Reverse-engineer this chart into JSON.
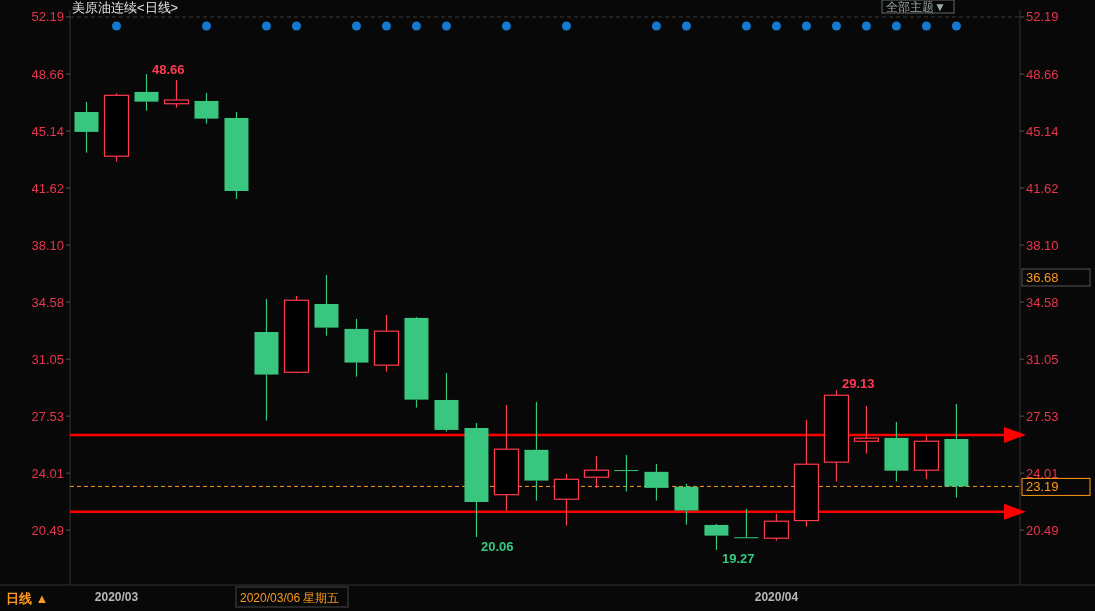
{
  "chart_data": {
    "type": "candlestick",
    "title": "美原油连续<日线>",
    "categories": [
      null,
      "2020/03",
      null,
      null,
      null,
      null,
      null,
      null,
      null,
      null,
      null,
      null,
      null,
      null,
      null,
      null,
      null,
      null,
      null,
      null,
      null,
      null,
      null,
      "2020/04",
      null,
      null,
      null,
      null,
      null,
      null
    ],
    "ohlc": [
      [
        46.32,
        46.94,
        43.81,
        45.09
      ],
      [
        43.59,
        47.48,
        43.25,
        47.35
      ],
      [
        47.56,
        48.66,
        46.4,
        46.96
      ],
      [
        46.83,
        48.3,
        46.59,
        47.06
      ],
      [
        47.0,
        47.5,
        45.6,
        45.91
      ],
      [
        45.95,
        46.32,
        40.95,
        41.44
      ],
      [
        32.73,
        34.77,
        27.26,
        30.1
      ],
      [
        30.24,
        34.96,
        30.18,
        34.69
      ],
      [
        34.46,
        36.25,
        32.5,
        33.0
      ],
      [
        32.92,
        33.54,
        29.97,
        30.84
      ],
      [
        30.68,
        33.78,
        30.28,
        32.78
      ],
      [
        33.6,
        33.66,
        28.06,
        28.55
      ],
      [
        28.53,
        30.2,
        26.58,
        26.68
      ],
      [
        26.8,
        27.11,
        20.06,
        22.23
      ],
      [
        22.68,
        28.22,
        21.7,
        25.49
      ],
      [
        25.45,
        28.41,
        22.31,
        23.55
      ],
      [
        22.4,
        23.96,
        20.77,
        23.63
      ],
      [
        23.76,
        25.07,
        23.08,
        24.19
      ],
      [
        24.2,
        25.13,
        22.87,
        24.18
      ],
      [
        24.09,
        24.58,
        22.32,
        23.1
      ],
      [
        23.17,
        23.35,
        20.83,
        21.7
      ],
      [
        20.81,
        20.87,
        19.27,
        20.15
      ],
      [
        20.05,
        21.8,
        20.03,
        20.03
      ],
      [
        19.99,
        21.49,
        19.84,
        21.04
      ],
      [
        21.08,
        27.3,
        20.71,
        24.56
      ],
      [
        24.69,
        29.13,
        23.49,
        28.82
      ],
      [
        25.98,
        28.16,
        25.22,
        26.17
      ],
      [
        26.19,
        27.17,
        23.49,
        24.16
      ],
      [
        24.19,
        26.31,
        23.65,
        25.98
      ],
      [
        26.12,
        28.29,
        22.5,
        23.19
      ]
    ],
    "colors": [
      "#39c77f",
      "#ff3b4f",
      "#39c77f",
      "#ff3b4f",
      "#39c77f",
      "#39c77f",
      "#39c77f",
      "#ff3b4f",
      "#39c77f",
      "#39c77f",
      "#ff3b4f",
      "#39c77f",
      "#39c77f",
      "#39c77f",
      "#ff3b4f",
      "#39c77f",
      "#ff3b4f",
      "#ff3b4f",
      "#39c77f",
      "#39c77f",
      "#39c77f",
      "#39c77f",
      "#39c77f",
      "#ff3b4f",
      "#ff3b4f",
      "#ff3b4f",
      "#ff3b4f",
      "#39c77f",
      "#ff3b4f",
      "#39c77f"
    ],
    "series": [
      {
        "type": "scatter",
        "marker": "circle",
        "color": "#1479d0",
        "values": [
          null,
          51.63,
          null,
          null,
          51.63,
          null,
          51.63,
          51.63,
          null,
          51.63,
          51.63,
          51.63,
          51.63,
          null,
          51.63,
          null,
          51.63,
          null,
          null,
          51.63,
          51.63,
          null,
          51.63,
          51.63,
          51.63,
          51.63,
          51.63,
          51.63,
          51.63,
          51.63
        ]
      }
    ],
    "ylim": [
      17.1,
      52.62
    ],
    "yticks": [
      20.49,
      24.01,
      27.53,
      31.05,
      34.58,
      {
        "value": 38.1,
        "label": "38.10"
      },
      41.62,
      45.14,
      48.66,
      52.19
    ],
    "y2lim": [
      17.1,
      52.62
    ],
    "y2ticks": [
      20.49,
      24.01,
      27.53,
      31.05,
      34.58,
      {
        "value": 38.1,
        "label": "38.10"
      },
      41.62,
      45.14,
      48.66,
      52.19
    ],
    "ref_lines": [
      {
        "axis": "y",
        "value": 23.19,
        "label": "23.19",
        "color": "#ff9a1a",
        "line_style": "dashed"
      },
      {
        "axis": "y",
        "value": 26.37,
        "color": "#ff0000",
        "line_style": "solid"
      },
      {
        "axis": "y",
        "value": 21.62,
        "color": "#ff0000",
        "line_style": "solid"
      },
      {
        "axis": "y",
        "value": 52.19,
        "color": "#3a3a3a",
        "line_style": "dashed"
      }
    ],
    "annotations": [
      "48.66",
      "20.06",
      "19.27",
      "29.13",
      "36.68",
      "日线 ▲",
      "2020/03/06 星期五",
      "全部主题▼"
    ]
  }
}
